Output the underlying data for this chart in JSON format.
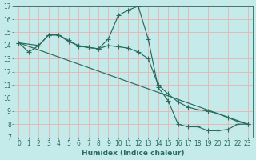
{
  "xlabel": "Humidex (Indice chaleur)",
  "bg_color": "#c5eaea",
  "grid_color": "#e8b4b4",
  "line_color": "#2a6b5e",
  "xlim_min": -0.5,
  "xlim_max": 23.5,
  "ylim_min": 7,
  "ylim_max": 17,
  "xticks": [
    0,
    1,
    2,
    3,
    4,
    5,
    6,
    7,
    8,
    9,
    10,
    11,
    12,
    13,
    14,
    15,
    16,
    17,
    18,
    19,
    20,
    21,
    22,
    23
  ],
  "yticks": [
    7,
    8,
    9,
    10,
    11,
    12,
    13,
    14,
    15,
    16,
    17
  ],
  "line1_x": [
    0,
    1,
    2,
    3,
    4,
    5,
    6,
    7,
    8,
    9,
    10,
    11,
    12,
    13,
    14,
    15,
    16,
    17,
    18,
    19,
    20,
    21,
    22,
    23
  ],
  "line1_y": [
    14.2,
    13.5,
    14.0,
    14.8,
    14.8,
    14.4,
    13.95,
    13.85,
    13.75,
    14.5,
    16.3,
    16.7,
    17.0,
    14.5,
    10.8,
    9.8,
    8.0,
    7.8,
    7.8,
    7.5,
    7.5,
    7.6,
    8.0,
    8.0
  ],
  "line2_x": [
    0,
    2,
    3,
    4,
    5,
    6,
    7,
    8,
    9,
    10,
    11,
    12,
    13,
    14,
    15,
    16,
    17,
    18,
    19,
    20,
    21,
    22,
    23
  ],
  "line2_y": [
    14.2,
    14.0,
    14.8,
    14.8,
    14.3,
    14.0,
    13.85,
    13.75,
    14.0,
    13.9,
    13.8,
    13.5,
    13.0,
    11.0,
    10.3,
    9.7,
    9.3,
    9.1,
    9.0,
    8.8,
    8.5,
    8.2,
    8.0
  ],
  "line3_x": [
    0,
    23
  ],
  "line3_y": [
    14.2,
    8.0
  ],
  "figsize": [
    3.2,
    2.0
  ],
  "dpi": 100
}
